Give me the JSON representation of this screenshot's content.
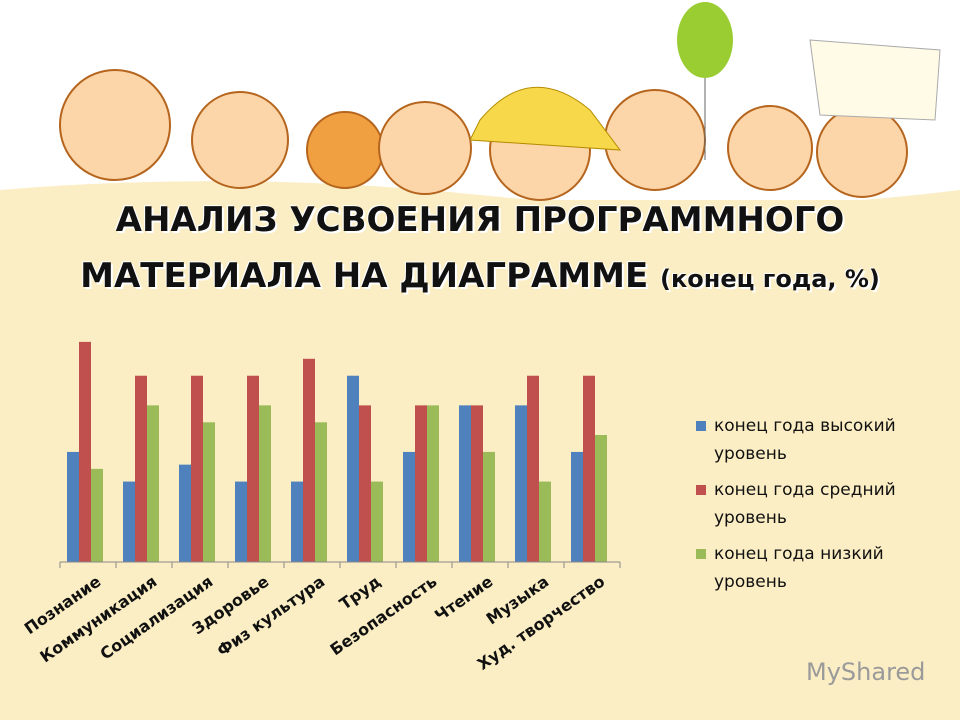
{
  "chart_data": {
    "type": "bar",
    "title": "АНАЛИЗ УСВОЕНИЯ ПРОГРАММНОГО МАТЕРИАЛА НА ДИАГРАММЕ",
    "subtitle": "(конец года, %)",
    "categories": [
      "Познание",
      "Коммуникация",
      "Социализация",
      "Здоровье",
      "Физ культура",
      "Труд",
      "Безопасность",
      "Чтение",
      "Музыка",
      "Худ. творчество"
    ],
    "series": [
      {
        "name": "конец года высокий уровень",
        "color": "#4f81bd",
        "values": [
          26,
          19,
          23,
          19,
          19,
          44,
          26,
          37,
          37,
          26
        ]
      },
      {
        "name": "конец года средний уровень",
        "color": "#c0504d",
        "values": [
          52,
          44,
          44,
          44,
          48,
          37,
          37,
          37,
          44,
          44
        ]
      },
      {
        "name": "конец года низкий уровень",
        "color": "#9bbb59",
        "values": [
          22,
          37,
          33,
          37,
          33,
          19,
          37,
          26,
          19,
          30
        ]
      }
    ],
    "ylim": [
      0,
      60
    ]
  },
  "watermark": "MyShared"
}
